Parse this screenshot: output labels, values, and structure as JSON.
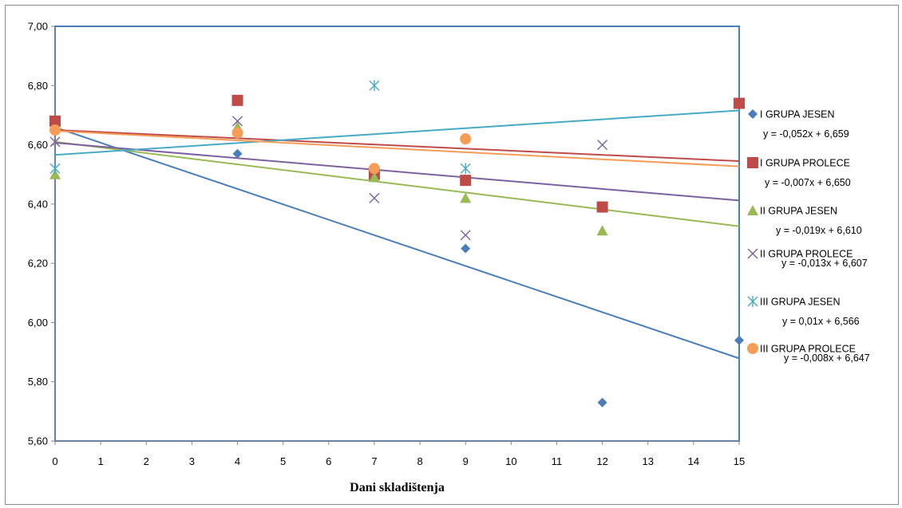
{
  "chart_data": {
    "type": "scatter",
    "xlabel": "Dani skladištenja",
    "ylabel": "",
    "xlim": [
      0,
      15
    ],
    "ylim": [
      5.6,
      7.0
    ],
    "x_ticks": [
      0,
      1,
      2,
      3,
      4,
      5,
      6,
      7,
      8,
      9,
      10,
      11,
      12,
      13,
      14,
      15
    ],
    "y_ticks": [
      "5,60",
      "5,80",
      "6,00",
      "6,20",
      "6,40",
      "6,60",
      "6,80",
      "7,00"
    ],
    "y_tick_values": [
      5.6,
      5.8,
      6.0,
      6.2,
      6.4,
      6.6,
      6.8,
      7.0
    ],
    "grid": false,
    "legend_position": "right",
    "series": [
      {
        "name": "I GRUPA JESEN",
        "marker": "diamond",
        "color": "#4a7ebb",
        "x": [
          0,
          4,
          7,
          9,
          12,
          15
        ],
        "y": [
          6.66,
          6.57,
          6.49,
          6.25,
          5.73,
          5.94
        ],
        "trend": {
          "slope": -0.052,
          "intercept": 6.659,
          "label": "y = -0,052x + 6,659"
        }
      },
      {
        "name": "I GRUPA PROLECE",
        "marker": "square",
        "color": "#be4b48",
        "x": [
          0,
          4,
          7,
          9,
          12,
          15
        ],
        "y": [
          6.68,
          6.75,
          6.5,
          6.48,
          6.39,
          6.74
        ],
        "trend": {
          "slope": -0.007,
          "intercept": 6.65,
          "label": "y = -0,007x + 6,650"
        }
      },
      {
        "name": "II GRUPA JESEN",
        "marker": "triangle",
        "color": "#98b954",
        "x": [
          0,
          4,
          7,
          9,
          12
        ],
        "y": [
          6.5,
          6.66,
          6.49,
          6.42,
          6.31
        ],
        "trend": {
          "slope": -0.019,
          "intercept": 6.61,
          "label": "y = -0,019x + 6,610"
        }
      },
      {
        "name": "II GRUPA PROLECE",
        "marker": "x",
        "color": "#7d60a0",
        "x": [
          0,
          4,
          7,
          9,
          12
        ],
        "y": [
          6.61,
          6.68,
          6.42,
          6.295,
          6.6
        ],
        "trend": {
          "slope": -0.013,
          "intercept": 6.607,
          "label": "y = -0,013x + 6,607"
        }
      },
      {
        "name": "III GRUPA JESEN",
        "marker": "asterisk",
        "color": "#46aac5",
        "x": [
          0,
          7,
          9
        ],
        "y": [
          6.52,
          6.8,
          6.52
        ],
        "trend": {
          "slope": 0.01,
          "intercept": 6.566,
          "label": "y = 0,01x + 6,566"
        }
      },
      {
        "name": "III GRUPA PROLECE",
        "marker": "circle",
        "color": "#f59d56",
        "x": [
          0,
          4,
          7,
          9
        ],
        "y": [
          6.65,
          6.64,
          6.52,
          6.62
        ],
        "trend": {
          "slope": -0.008,
          "intercept": 6.647,
          "label": "y = -0,008x + 6,647"
        }
      }
    ]
  }
}
